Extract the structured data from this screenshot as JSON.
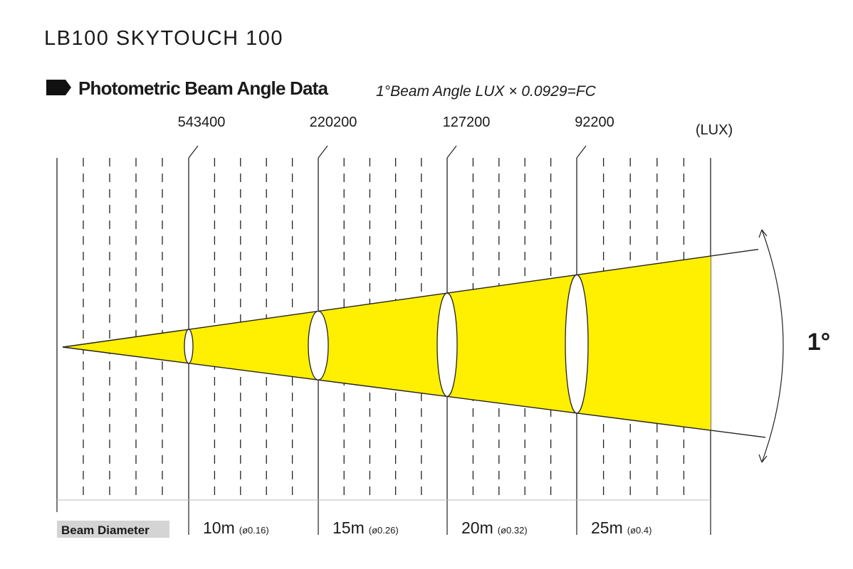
{
  "header": {
    "title": "LB100 SKYTOUCH 100",
    "section": "Photometric Beam Angle Data",
    "note": "1°Beam Angle  LUX × 0.0929=FC"
  },
  "lux": {
    "values": [
      "543400",
      "220200",
      "127200",
      "92200"
    ],
    "unit": "(LUX)"
  },
  "angle": "1°",
  "footer": {
    "label": "Beam Diameter",
    "distances": [
      {
        "distance": "10m",
        "diameter": "(ø0.16)"
      },
      {
        "distance": "15m",
        "diameter": "(ø0.26)"
      },
      {
        "distance": "20m",
        "diameter": "(ø0.32)"
      },
      {
        "distance": "25m",
        "diameter": "(ø0.4)"
      }
    ]
  }
}
